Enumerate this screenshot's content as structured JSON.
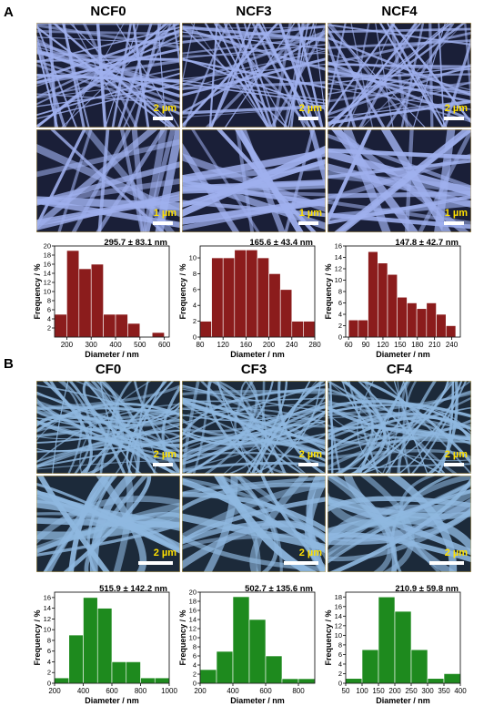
{
  "panels": [
    {
      "label": "A",
      "columns": [
        "NCF0",
        "NCF3",
        "NCF4"
      ],
      "scale_bars": [
        [
          "2 µm",
          "2 µm",
          "2 µm"
        ],
        [
          "1 µm",
          "1 µm",
          "1 µm"
        ]
      ]
    },
    {
      "label": "B",
      "columns": [
        "CF0",
        "CF3",
        "CF4"
      ],
      "scale_bars": [
        [
          "2 µm",
          "2 µm",
          "2 µm"
        ],
        [
          "2 µm",
          "2 µm",
          "2 µm"
        ]
      ]
    }
  ],
  "chart_data": [
    {
      "type": "histogram",
      "annotation": "295.7 ± 83.1 nm",
      "xlabel": "Diameter / nm",
      "ylabel": "Frequency / %",
      "color": "#8b1c1c",
      "bins": [
        150,
        200,
        250,
        300,
        350,
        400,
        450,
        500,
        550,
        600
      ],
      "counts": [
        5,
        19,
        15,
        16,
        5,
        5,
        3,
        0,
        1
      ],
      "xlim": [
        150,
        620
      ],
      "xticks": [
        200,
        300,
        400,
        500,
        600
      ],
      "ylim": [
        0,
        20
      ],
      "yticks": [
        2,
        4,
        6,
        8,
        10,
        12,
        14,
        16,
        18,
        20
      ]
    },
    {
      "type": "histogram",
      "annotation": "165.6 ± 43.4 nm",
      "xlabel": "Diameter / nm",
      "ylabel": "Frequency / %",
      "color": "#8b1c1c",
      "bins": [
        80,
        100,
        120,
        140,
        160,
        180,
        200,
        220,
        240,
        260,
        280
      ],
      "counts": [
        2,
        10,
        10,
        11,
        11,
        10,
        8,
        6,
        2,
        2
      ],
      "xlim": [
        80,
        280
      ],
      "xticks": [
        80,
        120,
        160,
        200,
        240,
        280
      ],
      "ylim": [
        0,
        11.5
      ],
      "yticks": [
        0,
        2,
        4,
        6,
        8,
        10
      ]
    },
    {
      "type": "histogram",
      "annotation": "147.8 ± 42.7 nm",
      "xlabel": "Diameter / nm",
      "ylabel": "Frequency / %",
      "color": "#8b1c1c",
      "bins": [
        60,
        77,
        94,
        111,
        128,
        145,
        162,
        179,
        196,
        213,
        230,
        247
      ],
      "counts": [
        3,
        3,
        15,
        13,
        11,
        7,
        6,
        5,
        6,
        4,
        2
      ],
      "xlim": [
        55,
        255
      ],
      "xticks": [
        60,
        90,
        120,
        150,
        180,
        210,
        240
      ],
      "ylim": [
        0,
        16
      ],
      "yticks": [
        0,
        2,
        4,
        6,
        8,
        10,
        12,
        14,
        16
      ]
    },
    {
      "type": "histogram",
      "annotation": "515.9 ± 142.2 nm",
      "xlabel": "Diameter / nm",
      "ylabel": "Frequency / %",
      "color": "#1e8a1e",
      "bins": [
        200,
        300,
        400,
        500,
        600,
        700,
        800,
        900,
        1000
      ],
      "counts": [
        1,
        9,
        16,
        14,
        4,
        4,
        1,
        1
      ],
      "xlim": [
        200,
        1000
      ],
      "xticks": [
        200,
        400,
        600,
        800,
        1000
      ],
      "ylim": [
        0,
        17
      ],
      "yticks": [
        0,
        2,
        4,
        6,
        8,
        10,
        12,
        14,
        16
      ]
    },
    {
      "type": "histogram",
      "annotation": "502.7 ± 135.6 nm",
      "xlabel": "Diameter / nm",
      "ylabel": "Frequency / %",
      "color": "#1e8a1e",
      "bins": [
        200,
        300,
        400,
        500,
        600,
        700,
        800,
        900
      ],
      "counts": [
        3,
        7,
        19,
        14,
        6,
        1,
        1
      ],
      "xlim": [
        200,
        900
      ],
      "xticks": [
        200,
        400,
        600,
        800
      ],
      "ylim": [
        0,
        20
      ],
      "yticks": [
        0,
        2,
        4,
        6,
        8,
        10,
        12,
        14,
        16,
        18,
        20
      ]
    },
    {
      "type": "histogram",
      "annotation": "210.9 ±  59.8 nm",
      "xlabel": "Diameter / nm",
      "ylabel": "Frequency / %",
      "color": "#1e8a1e",
      "bins": [
        50,
        100,
        150,
        200,
        250,
        300,
        350,
        400
      ],
      "counts": [
        1,
        7,
        18,
        15,
        7,
        1,
        2
      ],
      "xlim": [
        50,
        400
      ],
      "xticks": [
        50,
        100,
        150,
        200,
        250,
        300,
        350,
        400
      ],
      "ylim": [
        0,
        19
      ],
      "yticks": [
        0,
        2,
        4,
        6,
        8,
        10,
        12,
        14,
        16,
        18
      ]
    }
  ]
}
